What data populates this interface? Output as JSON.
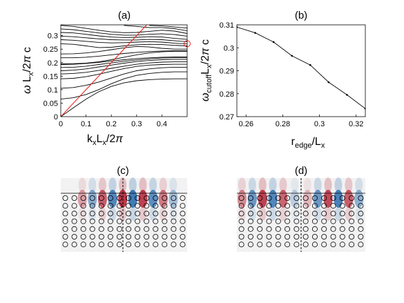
{
  "panels": {
    "a_label": "(a)",
    "b_label": "(b)",
    "c_label": "(c)",
    "d_label": "(d)"
  },
  "chart_data": [
    {
      "panel": "(a)",
      "type": "line",
      "xlabel": "k_x L_x/2π",
      "ylabel": "ω L_x/2π c",
      "xlim": [
        0,
        0.5
      ],
      "ylim": [
        0,
        0.34
      ],
      "xticks": [
        "0",
        "0.1",
        "0.2",
        "0.3",
        "0.4"
      ],
      "yticks": [
        "0",
        "0.05",
        "0.1",
        "0.15",
        "0.2",
        "0.25",
        "0.3"
      ],
      "light_line": {
        "color": "#e8231c",
        "x": [
          0,
          0.34
        ],
        "y": [
          0,
          0.34
        ]
      },
      "marker": {
        "x": 0.5,
        "y": 0.27,
        "shape": "circle",
        "color": "#e8231c"
      },
      "series_color": "#000000",
      "series": [
        {
          "x": [
            0,
            0.05,
            0.1,
            0.15,
            0.2,
            0.25,
            0.3,
            0.35,
            0.4,
            0.45,
            0.5
          ],
          "y": [
            0,
            0.033,
            0.065,
            0.092,
            0.112,
            0.125,
            0.133,
            0.137,
            0.139,
            0.14,
            0.14
          ]
        },
        {
          "x": [
            0,
            0.05,
            0.1,
            0.15,
            0.2,
            0.25,
            0.3,
            0.35,
            0.4,
            0.45,
            0.5
          ],
          "y": [
            0.065,
            0.07,
            0.082,
            0.1,
            0.122,
            0.14,
            0.153,
            0.16,
            0.164,
            0.166,
            0.166
          ]
        },
        {
          "x": [
            0,
            0.05,
            0.1,
            0.15,
            0.2,
            0.25,
            0.3,
            0.35,
            0.4,
            0.45,
            0.5
          ],
          "y": [
            0.105,
            0.108,
            0.116,
            0.128,
            0.143,
            0.158,
            0.17,
            0.177,
            0.181,
            0.183,
            0.183
          ]
        },
        {
          "x": [
            0,
            0.05,
            0.1,
            0.15,
            0.2,
            0.25,
            0.3,
            0.35,
            0.4,
            0.45,
            0.5
          ],
          "y": [
            0.14,
            0.142,
            0.148,
            0.157,
            0.168,
            0.178,
            0.186,
            0.191,
            0.193,
            0.194,
            0.194
          ]
        },
        {
          "x": [
            0,
            0.05,
            0.1,
            0.15,
            0.2,
            0.25,
            0.3,
            0.35,
            0.4,
            0.45,
            0.5
          ],
          "y": [
            0.158,
            0.16,
            0.164,
            0.171,
            0.179,
            0.187,
            0.194,
            0.199,
            0.202,
            0.203,
            0.203
          ]
        },
        {
          "x": [
            0,
            0.05,
            0.1,
            0.15,
            0.2,
            0.25,
            0.3,
            0.35,
            0.4,
            0.45,
            0.5
          ],
          "y": [
            0.17,
            0.172,
            0.177,
            0.184,
            0.191,
            0.198,
            0.204,
            0.208,
            0.211,
            0.212,
            0.212
          ]
        },
        {
          "x": [
            0,
            0.05,
            0.1,
            0.15,
            0.2,
            0.25,
            0.3,
            0.35,
            0.4,
            0.45,
            0.5
          ],
          "y": [
            0.182,
            0.183,
            0.187,
            0.193,
            0.199,
            0.205,
            0.21,
            0.214,
            0.217,
            0.218,
            0.218
          ]
        },
        {
          "x": [
            0,
            0.05,
            0.1,
            0.15,
            0.2,
            0.25,
            0.3,
            0.35,
            0.4,
            0.45,
            0.5
          ],
          "y": [
            0.193,
            0.194,
            0.197,
            0.201,
            0.206,
            0.211,
            0.215,
            0.218,
            0.22,
            0.221,
            0.221
          ]
        },
        {
          "x": [
            0,
            0.05,
            0.1,
            0.15,
            0.2,
            0.25,
            0.3,
            0.35,
            0.4,
            0.45,
            0.5
          ],
          "y": [
            0.196,
            0.196,
            0.198,
            0.203,
            0.211,
            0.22,
            0.229,
            0.236,
            0.24,
            0.242,
            0.242
          ]
        },
        {
          "x": [
            0,
            0.05,
            0.1,
            0.15,
            0.2,
            0.25,
            0.3,
            0.35,
            0.4,
            0.45,
            0.5
          ],
          "y": [
            0.218,
            0.218,
            0.22,
            0.224,
            0.229,
            0.234,
            0.238,
            0.241,
            0.243,
            0.244,
            0.244
          ]
        },
        {
          "x": [
            0,
            0.05,
            0.1,
            0.15,
            0.2,
            0.25,
            0.3,
            0.35,
            0.4,
            0.45,
            0.5
          ],
          "y": [
            0.232,
            0.233,
            0.236,
            0.241,
            0.248,
            0.255,
            0.26,
            0.258,
            0.253,
            0.25,
            0.25
          ]
        },
        {
          "x": [
            0,
            0.05,
            0.1,
            0.15,
            0.2,
            0.25,
            0.3,
            0.35,
            0.4,
            0.45,
            0.5
          ],
          "y": [
            0.27,
            0.268,
            0.262,
            0.256,
            0.257,
            0.262,
            0.266,
            0.268,
            0.267,
            0.264,
            0.262
          ]
        },
        {
          "x": [
            0,
            0.05,
            0.1,
            0.15,
            0.2,
            0.25,
            0.3,
            0.35,
            0.4,
            0.45,
            0.5
          ],
          "y": [
            0.285,
            0.283,
            0.279,
            0.275,
            0.273,
            0.274,
            0.276,
            0.278,
            0.276,
            0.272,
            0.27
          ]
        },
        {
          "x": [
            0,
            0.05,
            0.1,
            0.15,
            0.2,
            0.25,
            0.3,
            0.35,
            0.4,
            0.45,
            0.5
          ],
          "y": [
            0.298,
            0.296,
            0.292,
            0.288,
            0.285,
            0.284,
            0.284,
            0.286,
            0.285,
            0.281,
            0.278
          ]
        },
        {
          "x": [
            0,
            0.05,
            0.1,
            0.15,
            0.2,
            0.25,
            0.3,
            0.35,
            0.4,
            0.45,
            0.5
          ],
          "y": [
            0.312,
            0.31,
            0.305,
            0.299,
            0.295,
            0.293,
            0.294,
            0.296,
            0.295,
            0.29,
            0.286
          ]
        },
        {
          "x": [
            0,
            0.05,
            0.1,
            0.15,
            0.2,
            0.25,
            0.3,
            0.35,
            0.4,
            0.45,
            0.5
          ],
          "y": [
            0.325,
            0.322,
            0.316,
            0.31,
            0.305,
            0.302,
            0.302,
            0.305,
            0.307,
            0.304,
            0.298
          ]
        },
        {
          "x": [
            0,
            0.05,
            0.1,
            0.15,
            0.2,
            0.25,
            0.3,
            0.35,
            0.4,
            0.45,
            0.5
          ],
          "y": [
            0.338,
            0.334,
            0.327,
            0.32,
            0.314,
            0.311,
            0.312,
            0.316,
            0.32,
            0.317,
            0.308
          ]
        },
        {
          "x": [
            0.25,
            0.3,
            0.35,
            0.4,
            0.45,
            0.5
          ],
          "y": [
            0.338,
            0.334,
            0.33,
            0.33,
            0.326,
            0.318
          ]
        },
        {
          "x": [
            0.35,
            0.4,
            0.45,
            0.5
          ],
          "y": [
            0.338,
            0.336,
            0.332,
            0.328
          ]
        }
      ]
    },
    {
      "panel": "(b)",
      "type": "line",
      "xlabel": "r_edge/L_x",
      "ylabel": "ω_cutoff L_x/2π c",
      "xlim": [
        0.255,
        0.325
      ],
      "ylim": [
        0.27,
        0.31
      ],
      "xticks": [
        "0.26",
        "0.28",
        "0.3",
        "0.32"
      ],
      "yticks": [
        "0.27",
        "0.28",
        "0.29",
        "0.3",
        "0.31"
      ],
      "series_color": "#000000",
      "series": [
        {
          "x": [
            0.255,
            0.265,
            0.275,
            0.285,
            0.295,
            0.305,
            0.315,
            0.325
          ],
          "y": [
            0.309,
            0.3065,
            0.3025,
            0.2965,
            0.2925,
            0.285,
            0.2795,
            0.2735
          ]
        }
      ]
    }
  ],
  "field_maps": {
    "c": {
      "cols": 14,
      "rows": 7,
      "blobs": [
        {
          "cx": 0.17,
          "amp": 0.45
        },
        {
          "cx": 0.25,
          "amp": -0.6
        },
        {
          "cx": 0.33,
          "amp": 0.8
        },
        {
          "cx": 0.41,
          "amp": -0.9
        },
        {
          "cx": 0.49,
          "amp": 1.0
        },
        {
          "cx": 0.57,
          "amp": -1.0
        },
        {
          "cx": 0.65,
          "amp": 0.95
        },
        {
          "cx": 0.73,
          "amp": -0.85
        },
        {
          "cx": 0.81,
          "amp": 0.65
        },
        {
          "cx": 0.89,
          "amp": -0.45
        }
      ]
    },
    "d": {
      "cols": 14,
      "rows": 7,
      "blobs": [
        {
          "cx": 0.04,
          "amp": 0.55
        },
        {
          "cx": 0.12,
          "amp": -0.75
        },
        {
          "cx": 0.2,
          "amp": 0.95
        },
        {
          "cx": 0.28,
          "amp": -0.9
        },
        {
          "cx": 0.36,
          "amp": 0.75
        },
        {
          "cx": 0.45,
          "amp": -0.3
        },
        {
          "cx": 0.55,
          "amp": 0.3
        },
        {
          "cx": 0.63,
          "amp": -0.75
        },
        {
          "cx": 0.71,
          "amp": 0.9
        },
        {
          "cx": 0.79,
          "amp": -0.95
        },
        {
          "cx": 0.87,
          "amp": 0.8
        },
        {
          "cx": 0.95,
          "amp": -0.55
        }
      ]
    },
    "positive_color": "#b2182b",
    "negative_color": "#2166ac"
  }
}
